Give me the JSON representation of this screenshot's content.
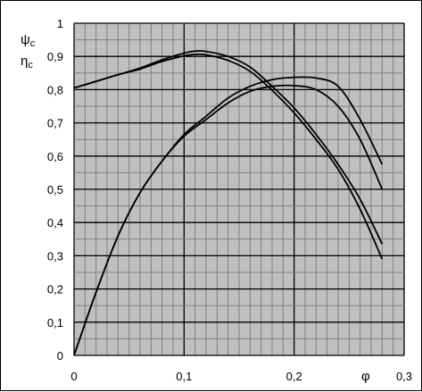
{
  "chart_data": {
    "type": "line",
    "title": "",
    "xlabel": "φ",
    "ylabel": [
      "ψ",
      "η"
    ],
    "ylabel_subscript": "c",
    "xlim": [
      0,
      0.3
    ],
    "ylim": [
      0,
      1
    ],
    "x_tick_labels": [
      "0",
      "0,1",
      "0,2",
      "0,3"
    ],
    "y_tick_labels": [
      "0",
      "0,1",
      "0,2",
      "0,3",
      "0,4",
      "0,5",
      "0,6",
      "0,7",
      "0,8",
      "0,9",
      "1"
    ],
    "grid": true,
    "grid_minor_step_x": 0.01,
    "grid_minor_step_y": 0.05,
    "line_color": "#000000",
    "grid_color": "#808080",
    "plot_background": "#c0c0c0",
    "series": [
      {
        "x": [
          0,
          0.02,
          0.04,
          0.06,
          0.08,
          0.1,
          0.11,
          0.12,
          0.14,
          0.16,
          0.18,
          0.2,
          0.22,
          0.24,
          0.26,
          0.28
        ],
        "y": [
          0.805,
          0.825,
          0.845,
          0.865,
          0.89,
          0.91,
          0.916,
          0.915,
          0.9,
          0.868,
          0.81,
          0.745,
          0.665,
          0.575,
          0.47,
          0.335
        ]
      },
      {
        "x": [
          0,
          0.02,
          0.04,
          0.06,
          0.08,
          0.1,
          0.11,
          0.12,
          0.14,
          0.16,
          0.18,
          0.2,
          0.22,
          0.24,
          0.26,
          0.28
        ],
        "y": [
          0.805,
          0.825,
          0.845,
          0.862,
          0.885,
          0.902,
          0.906,
          0.905,
          0.888,
          0.855,
          0.798,
          0.73,
          0.65,
          0.56,
          0.44,
          0.29
        ]
      },
      {
        "x": [
          0,
          0.02,
          0.04,
          0.06,
          0.08,
          0.1,
          0.12,
          0.14,
          0.16,
          0.18,
          0.2,
          0.22,
          0.24,
          0.26,
          0.28
        ],
        "y": [
          0,
          0.19,
          0.36,
          0.49,
          0.585,
          0.665,
          0.72,
          0.775,
          0.81,
          0.83,
          0.837,
          0.835,
          0.81,
          0.71,
          0.575
        ]
      },
      {
        "x": [
          0,
          0.02,
          0.04,
          0.06,
          0.08,
          0.1,
          0.12,
          0.14,
          0.16,
          0.18,
          0.2,
          0.22,
          0.24,
          0.26,
          0.28
        ],
        "y": [
          0,
          0.19,
          0.36,
          0.49,
          0.585,
          0.66,
          0.71,
          0.76,
          0.795,
          0.81,
          0.812,
          0.8,
          0.75,
          0.65,
          0.5
        ]
      }
    ]
  }
}
